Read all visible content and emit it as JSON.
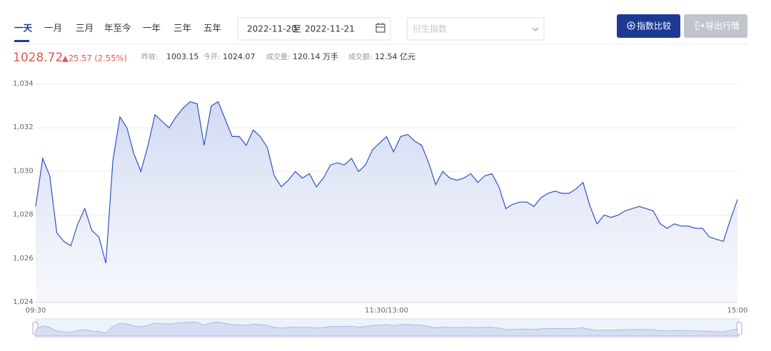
{
  "toolbar": {
    "tabs": [
      "一天",
      "一月",
      "三月",
      "年至今",
      "一年",
      "三年",
      "五年"
    ],
    "active_tab": 0,
    "date_start": "2022-11-20",
    "date_separator": "至",
    "date_end": "2022-11-21",
    "select_placeholder": "衍生指数",
    "buttons": [
      "指数比较",
      "导出行情"
    ]
  },
  "quote": {
    "price": "1028.72",
    "change": "▲25.57 (2.55%)",
    "stats": [
      {
        "label": "昨收:",
        "value": "1003.15"
      },
      {
        "label": "今开:",
        "value": "1024.07"
      },
      {
        "label": "成交量:",
        "value": "120.14 万手"
      },
      {
        "label": "成交额:",
        "value": "12.54 亿元"
      }
    ]
  },
  "chart_data": {
    "type": "area",
    "color": "#3350c8",
    "grid": true,
    "ylim": [
      1024,
      1034
    ],
    "yticks": [
      {
        "value": 1024,
        "label": "1,024"
      },
      {
        "value": 1026,
        "label": "1,026"
      },
      {
        "value": 1028,
        "label": "1,028"
      },
      {
        "value": 1030,
        "label": "1,030"
      },
      {
        "value": 1032,
        "label": "1,032"
      },
      {
        "value": 1034,
        "label": "1,034"
      }
    ],
    "categories": [
      "09:30",
      null,
      null,
      null,
      null,
      null,
      null,
      null,
      null,
      null,
      null,
      null,
      null,
      null,
      null,
      null,
      null,
      null,
      null,
      null,
      null,
      null,
      null,
      null,
      null,
      null,
      null,
      null,
      null,
      null,
      null,
      null,
      null,
      null,
      null,
      null,
      null,
      null,
      null,
      null,
      null,
      null,
      null,
      null,
      null,
      null,
      null,
      null,
      null,
      null,
      "11:30/13:00",
      null,
      null,
      null,
      null,
      null,
      null,
      null,
      null,
      null,
      null,
      null,
      null,
      null,
      null,
      null,
      null,
      null,
      null,
      null,
      null,
      null,
      null,
      null,
      null,
      null,
      null,
      null,
      null,
      null,
      null,
      null,
      null,
      null,
      null,
      null,
      null,
      null,
      null,
      null,
      null,
      null,
      null,
      null,
      null,
      null,
      null,
      null,
      null,
      null,
      "15:00"
    ],
    "values": [
      1028.4,
      1030.6,
      1029.8,
      1027.2,
      1026.8,
      1026.6,
      1027.6,
      1028.3,
      1027.3,
      1027.0,
      1025.8,
      1030.5,
      1032.5,
      1032.0,
      1030.8,
      1030.0,
      1031.2,
      1032.6,
      1032.3,
      1032.0,
      1032.5,
      1032.9,
      1033.2,
      1033.1,
      1031.2,
      1033.0,
      1033.2,
      1032.4,
      1031.6,
      1031.6,
      1031.2,
      1031.9,
      1031.6,
      1031.1,
      1029.8,
      1029.3,
      1029.6,
      1030.0,
      1029.7,
      1029.9,
      1029.3,
      1029.7,
      1030.3,
      1030.4,
      1030.3,
      1030.6,
      1030.0,
      1030.3,
      1031.0,
      1031.3,
      1031.6,
      1030.9,
      1031.6,
      1031.7,
      1031.4,
      1031.2,
      1030.4,
      1029.4,
      1030.0,
      1029.7,
      1029.6,
      1029.7,
      1029.9,
      1029.5,
      1029.8,
      1029.9,
      1029.3,
      1028.3,
      1028.5,
      1028.6,
      1028.6,
      1028.4,
      1028.8,
      1029.0,
      1029.1,
      1029.0,
      1029.0,
      1029.2,
      1029.5,
      1028.4,
      1027.6,
      1028.0,
      1027.9,
      1028.0,
      1028.2,
      1028.3,
      1028.4,
      1028.3,
      1028.2,
      1027.6,
      1027.4,
      1027.6,
      1027.5,
      1027.5,
      1027.4,
      1027.4,
      1027.0,
      1026.9,
      1026.8,
      1027.8,
      1028.72
    ]
  }
}
